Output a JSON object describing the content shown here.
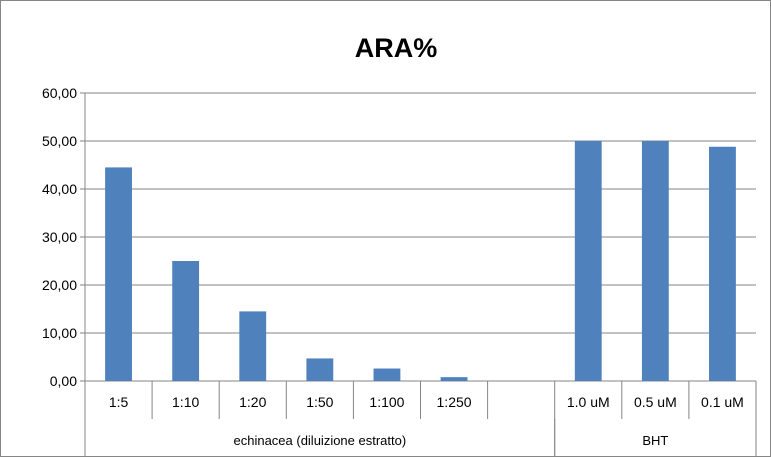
{
  "chart_data": {
    "type": "bar",
    "title": "ARA%",
    "xlabel": "",
    "ylabel": "",
    "ylim": [
      0,
      60
    ],
    "yticks": [
      "0,00",
      "10,00",
      "20,00",
      "30,00",
      "40,00",
      "50,00",
      "60,00"
    ],
    "categories": [
      "1:5",
      "1:10",
      "1:20",
      "1:50",
      "1:100",
      "1:250",
      "",
      "1.0 uM",
      "0.5 uM",
      "0.1 uM"
    ],
    "values": [
      44.5,
      25.0,
      14.5,
      4.7,
      2.6,
      0.8,
      null,
      50.0,
      50.0,
      48.8
    ],
    "groups": [
      {
        "label": "echinacea (diluizione estratto)",
        "span": 7
      },
      {
        "label": "BHT",
        "span": 3
      }
    ],
    "bar_color": "#4F81BD",
    "grid": true,
    "legend": "none"
  }
}
